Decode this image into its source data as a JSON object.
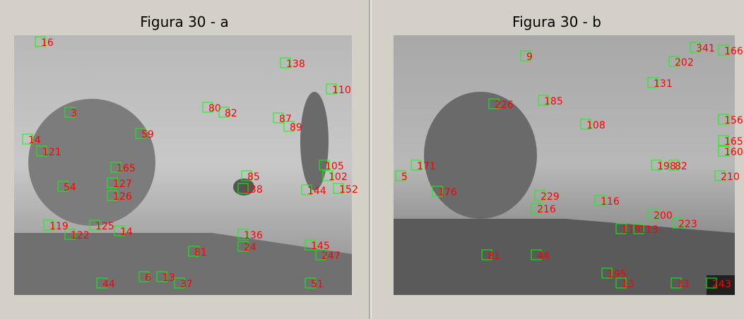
{
  "panels": [
    {
      "title": "Figura 30 - a",
      "features": [
        "16",
        "138",
        "110",
        "3",
        "80",
        "82",
        "87",
        "89",
        "59",
        "14",
        "121",
        "165",
        "105",
        "102",
        "152",
        "127",
        "85",
        "138",
        "144",
        "126",
        "54",
        "122",
        "125",
        "14",
        "136",
        "24",
        "145",
        "81",
        "247",
        "44",
        "37",
        "51",
        "119",
        "6",
        "13"
      ]
    },
    {
      "title": "Figura 30 - b",
      "features": [
        "9",
        "202",
        "341",
        "166",
        "131",
        "226",
        "185",
        "108",
        "156",
        "165",
        "160",
        "171",
        "198",
        "82",
        "210",
        "116",
        "229",
        "216",
        "200",
        "223",
        "113",
        "119",
        "81",
        "44",
        "195",
        "33",
        "5",
        "176",
        "243",
        "13"
      ]
    }
  ]
}
